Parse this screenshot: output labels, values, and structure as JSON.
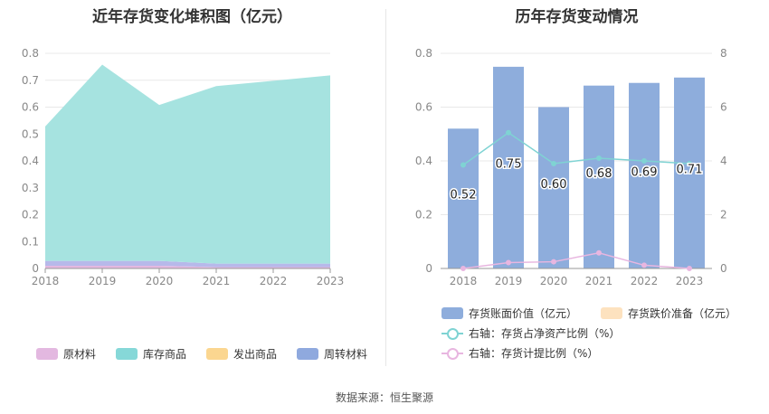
{
  "left": {
    "title": "近年存货变化堆积图（亿元）",
    "legend": [
      {
        "label": "原材料",
        "color": "#e3b8e0"
      },
      {
        "label": "库存商品",
        "color": "#86d8d8"
      },
      {
        "label": "发出商品",
        "color": "#fbd690"
      },
      {
        "label": "周转材料",
        "color": "#8fa9de"
      }
    ]
  },
  "right": {
    "title": "历年存货变动情况",
    "legend": [
      {
        "label": "存货账面价值（亿元）",
        "color": "#8eaddc"
      },
      {
        "label": "存货跌价准备（亿元）",
        "color": "#fde2bf"
      },
      {
        "label": "右轴：存货占净资产比例（%）",
        "color": "#7fd3d3"
      },
      {
        "label": "右轴：存货计提比例（%）",
        "color": "#e8b6e0"
      }
    ]
  },
  "source": "数据来源：恒生聚源",
  "chart_data": [
    {
      "type": "area",
      "title": "近年存货变化堆积图（亿元）",
      "categories": [
        "2018",
        "2019",
        "2020",
        "2021",
        "2022",
        "2023"
      ],
      "ylim": [
        0,
        0.8
      ],
      "yticks": [
        "0",
        "0.1",
        "0.2",
        "0.3",
        "0.4",
        "0.5",
        "0.6",
        "0.7",
        "0.8"
      ],
      "stacked": true,
      "grid": true,
      "legend_position": "bottom",
      "series": [
        {
          "name": "原材料",
          "color": "#e3b8e0",
          "values": [
            0.01,
            0.01,
            0.01,
            0.005,
            0.005,
            0.005
          ]
        },
        {
          "name": "库存商品",
          "color": "#a6e3e0",
          "values": [
            0.5,
            0.73,
            0.58,
            0.66,
            0.68,
            0.7
          ]
        },
        {
          "name": "发出商品",
          "color": "#fbd690",
          "values": [
            0,
            0,
            0,
            0,
            0,
            0
          ]
        },
        {
          "name": "周转材料",
          "color": "#b7b9ea",
          "values": [
            0.018,
            0.018,
            0.018,
            0.013,
            0.013,
            0.013
          ]
        }
      ]
    },
    {
      "type": "bar",
      "title": "历年存货变动情况",
      "categories": [
        "2018",
        "2019",
        "2020",
        "2021",
        "2022",
        "2023"
      ],
      "ylim": [
        0,
        0.8
      ],
      "yticks": [
        "0",
        "0.2",
        "0.4",
        "0.6",
        "0.8"
      ],
      "y2lim": [
        0,
        8
      ],
      "y2ticks": [
        "0",
        "2",
        "4",
        "6",
        "8"
      ],
      "grid": true,
      "legend_position": "bottom",
      "series": [
        {
          "name": "存货账面价值（亿元）",
          "type": "bar",
          "color": "#8eaddc",
          "values": [
            0.52,
            0.75,
            0.6,
            0.68,
            0.69,
            0.71
          ],
          "labels": [
            "0.52",
            "0.75",
            "0.60",
            "0.68",
            "0.69",
            "0.71"
          ]
        },
        {
          "name": "存货跌价准备（亿元）",
          "type": "bar",
          "color": "#fde2bf",
          "values": [
            0,
            0,
            0,
            0,
            0,
            0
          ]
        },
        {
          "name": "右轴：存货占净资产比例（%）",
          "type": "line",
          "axis": "right",
          "color": "#7fd3d3",
          "values": [
            3.85,
            5.05,
            3.9,
            4.1,
            4.0,
            3.9
          ]
        },
        {
          "name": "右轴：存货计提比例（%）",
          "type": "line",
          "axis": "right",
          "color": "#e8b6e0",
          "values": [
            0.0,
            0.22,
            0.25,
            0.58,
            0.12,
            0.0
          ]
        }
      ]
    }
  ]
}
